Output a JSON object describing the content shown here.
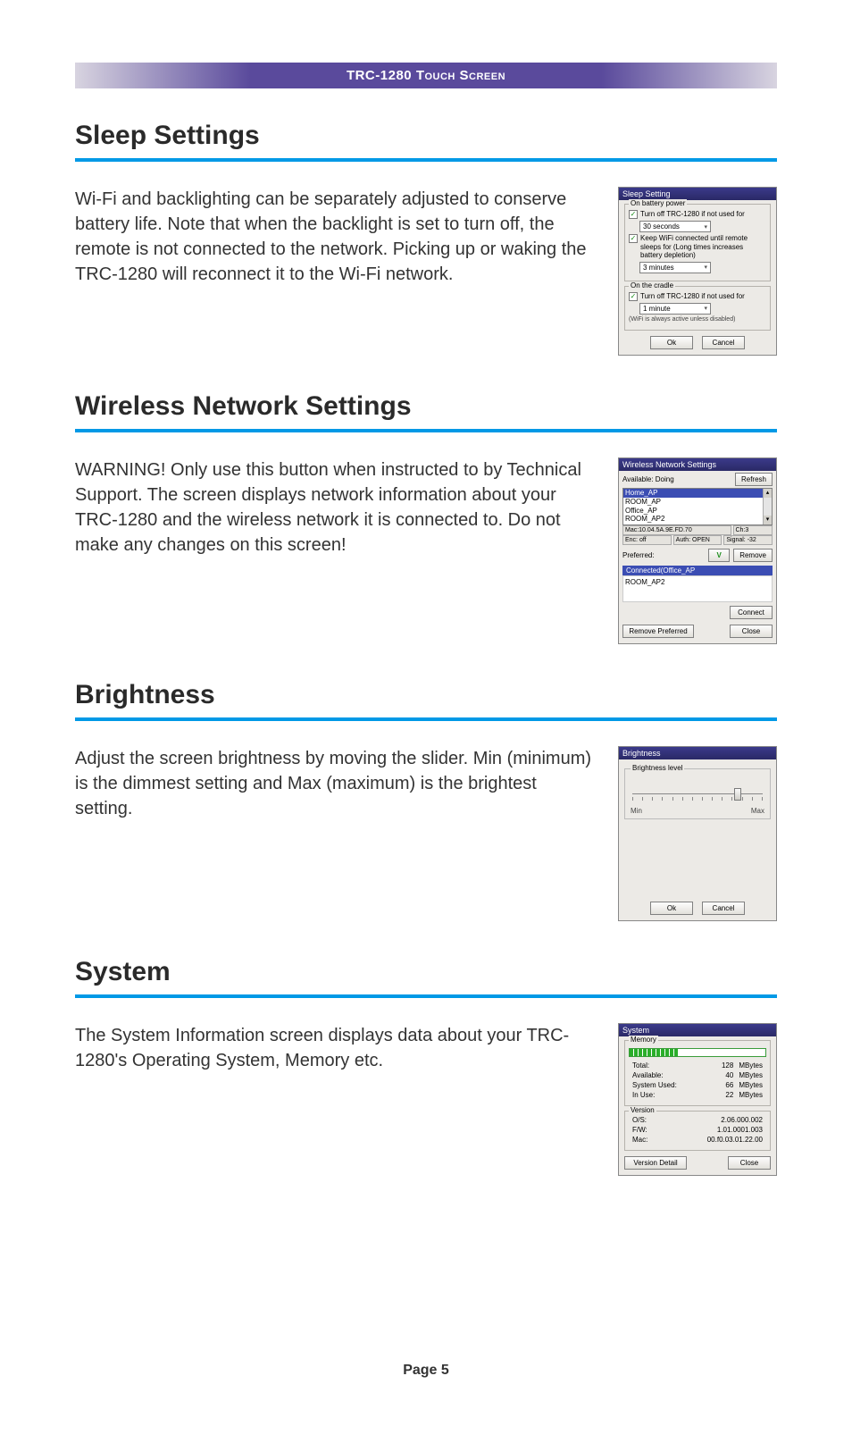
{
  "header": {
    "product": "TRC-1280",
    "suffix": "Touch Screen"
  },
  "sections": {
    "sleep": {
      "title": "Sleep Settings",
      "text": "Wi-Fi and backlighting can be separately adjusted to conserve battery life. Note that when the backlight is set to turn off, the remote is not connected to the network. Picking up or waking the TRC-1280 will reconnect it to the Wi-Fi network."
    },
    "wireless": {
      "title": "Wireless Network Settings",
      "text": "WARNING! Only use this button when instructed to by Technical Support. The screen displays network information about your TRC-1280 and the wireless network it is connected to. Do not make any changes on this screen!"
    },
    "brightness": {
      "title": "Brightness",
      "text": "Adjust the screen brightness by moving the slider. Min (minimum) is the dimmest setting and Max (maximum) is the brightest setting."
    },
    "system": {
      "title": "System",
      "text": "The System Information screen displays data about your TRC-1280's Operating System, Memory etc."
    }
  },
  "sleep_ss": {
    "title": "Sleep Setting",
    "group1": "On battery power",
    "chk1": "Turn off TRC-1280 if not used for",
    "sel1": "30 seconds",
    "chk2": "Keep WiFi connected until remote sleeps for (Long times increases battery depletion)",
    "sel2": "3 minutes",
    "group2": "On the cradle",
    "chk3": "Turn off TRC-1280 if not used for",
    "sel3": "1 minute",
    "note": "(WiFi is always active unless disabled)",
    "ok": "Ok",
    "cancel": "Cancel"
  },
  "wireless_ss": {
    "title": "Wireless Network Settings",
    "available": "Available:",
    "status": "Doing",
    "refresh": "Refresh",
    "aps": [
      "Home_AP",
      "ROOM_AP",
      "Office_AP",
      "ROOM_AP2"
    ],
    "mac": "Mac:10.04.5A.9E.FD.70",
    "ch": "Ch:3",
    "enc": "Enc: off",
    "auth": "Auth: OPEN",
    "signal": "Signal: -32",
    "preferred": "Preferred:",
    "check": "V",
    "remove": "Remove",
    "connected_hdr": "Connected(Office_AP",
    "connected_item": "ROOM_AP2",
    "connect": "Connect",
    "remove_pref": "Remove Preferred",
    "close": "Close"
  },
  "brightness_ss": {
    "title": "Brightness",
    "legend": "Brightness level",
    "min": "Min",
    "max": "Max",
    "ok": "Ok",
    "cancel": "Cancel",
    "slider_percent": 78,
    "tick_count": 14
  },
  "system_ss": {
    "title": "System",
    "mem_legend": "Memory",
    "mem_fill_percent": 36,
    "rows": {
      "total_label": "Total:",
      "total_val": "128",
      "total_unit": "MBytes",
      "avail_label": "Available:",
      "avail_val": "40",
      "avail_unit": "MBytes",
      "used_label": "System Used:",
      "used_val": "66",
      "used_unit": "MBytes",
      "inuse_label": "In Use:",
      "inuse_val": "22",
      "inuse_unit": "MBytes"
    },
    "ver_legend": "Version",
    "ver": {
      "os_label": "O/S:",
      "os_val": "2.06.000.002",
      "fw_label": "F/W:",
      "fw_val": "1.01.0001.003",
      "mac_label": "Mac:",
      "mac_val": "00.f0.03.01.22.00"
    },
    "detail": "Version Detail",
    "close": "Close"
  },
  "footer": "Page 5",
  "colors": {
    "rule": "#0099e6",
    "header_purple": "#5a4a9c",
    "dialog_title": "#2a2966"
  }
}
